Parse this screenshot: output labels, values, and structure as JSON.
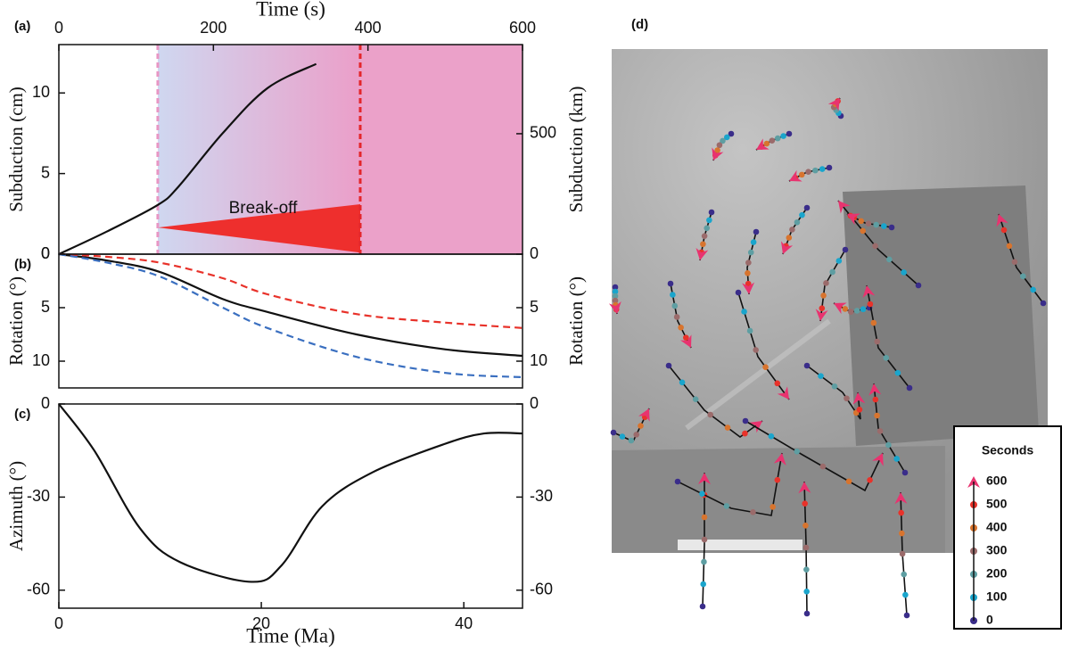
{
  "chart_data": [
    {
      "type": "line",
      "panel_label": "(a)",
      "xlabel": "Time (s)",
      "xaxis_position": "top",
      "xlim": [
        0,
        600
      ],
      "xticks": [
        0,
        200,
        400,
        600
      ],
      "ylabel": "Subduction (cm)",
      "ylim": [
        0,
        13
      ],
      "yticks": [
        0,
        5,
        10
      ],
      "y2label": "Subduction (km)",
      "y2lim": [
        0,
        870
      ],
      "y2ticks": [
        0,
        500
      ],
      "regions": [
        {
          "x": [
            128,
            390
          ],
          "colors": [
            "#cfd7f0",
            "#eb9fc9"
          ]
        },
        {
          "x": [
            390,
            600
          ],
          "colors": [
            "#eba1c9",
            "#eba1c9"
          ]
        }
      ],
      "vlines": [
        {
          "x": 128,
          "color": "#e896c4"
        },
        {
          "x": 390,
          "color": "#e3262b"
        }
      ],
      "shapes": [
        {
          "x": [
            128,
            390,
            390
          ],
          "y": [
            1.65,
            3.1,
            0.1
          ],
          "color": "#ee2f2d"
        }
      ],
      "annotations": [
        "Break-off"
      ],
      "series": [
        {
          "color": "#111111",
          "dash": false,
          "x": [
            0,
            62,
            128,
            155,
            212,
            270,
            333
          ],
          "values": [
            0,
            1.4,
            3.05,
            4.2,
            7.5,
            10.3,
            11.8
          ]
        }
      ]
    },
    {
      "type": "line",
      "panel_label": "(b)",
      "xlim": [
        0,
        45.8
      ],
      "ylabel": "Rotation (°)",
      "ylim": [
        12.5,
        0
      ],
      "yticks": [
        0,
        5,
        10
      ],
      "y2label": "Rotation (°)",
      "y2lim": [
        12.5,
        0
      ],
      "y2ticks": [
        5,
        10
      ],
      "series": [
        {
          "color": "#111111",
          "dash": false,
          "x": [
            0,
            4.8,
            10,
            16.2,
            20.6,
            29.4,
            38.2,
            45.8
          ],
          "values": [
            0,
            0.6,
            1.67,
            4.2,
            5.4,
            7.5,
            8.9,
            9.5
          ]
        },
        {
          "color": "#e8322a",
          "dash": true,
          "x": [
            0,
            4.8,
            10,
            16.2,
            20.6,
            29.4,
            38.2,
            45.8
          ],
          "values": [
            0,
            0.25,
            0.8,
            2.25,
            3.75,
            5.6,
            6.4,
            6.9
          ]
        },
        {
          "color": "#3a6fc0",
          "dash": true,
          "x": [
            0,
            4.8,
            10,
            16.2,
            20.6,
            29.4,
            38.2,
            45.8
          ],
          "values": [
            0,
            0.8,
            2.1,
            5,
            6.9,
            9.6,
            11.1,
            11.5
          ]
        }
      ]
    },
    {
      "type": "line",
      "panel_label": "(c)",
      "xlabel": "Time (Ma)",
      "xaxis_position": "bottom",
      "xlim": [
        0,
        45.8
      ],
      "xticks": [
        0,
        20,
        40
      ],
      "ylabel": "Azimuth (°)",
      "ylim": [
        -65.8,
        0
      ],
      "yticks": [
        0,
        -30,
        -60
      ],
      "y2lim": [
        -65.8,
        0
      ],
      "y2ticks": [
        0,
        -30,
        -60
      ],
      "series": [
        {
          "color": "#111111",
          "dash": false,
          "x": [
            0,
            3.5,
            8,
            12,
            19,
            22,
            26,
            31,
            38,
            42,
            45.8
          ],
          "values": [
            0,
            -15,
            -40,
            -51,
            -57.3,
            -52,
            -33,
            -22,
            -13,
            -9.5,
            -9.5
          ]
        }
      ]
    }
  ],
  "panel_d": {
    "panel_label": "(d)",
    "legend": {
      "title": "Seconds",
      "entries": [
        {
          "label": 600,
          "color": "#e8336f"
        },
        {
          "label": 500,
          "color": "#e8322a"
        },
        {
          "label": 400,
          "color": "#d8742e"
        },
        {
          "label": 300,
          "color": "#9b6b6b"
        },
        {
          "label": 200,
          "color": "#5e9ea2"
        },
        {
          "label": 100,
          "color": "#1aa5cc"
        },
        {
          "label": 0,
          "color": "#3a2d8a"
        }
      ]
    }
  }
}
